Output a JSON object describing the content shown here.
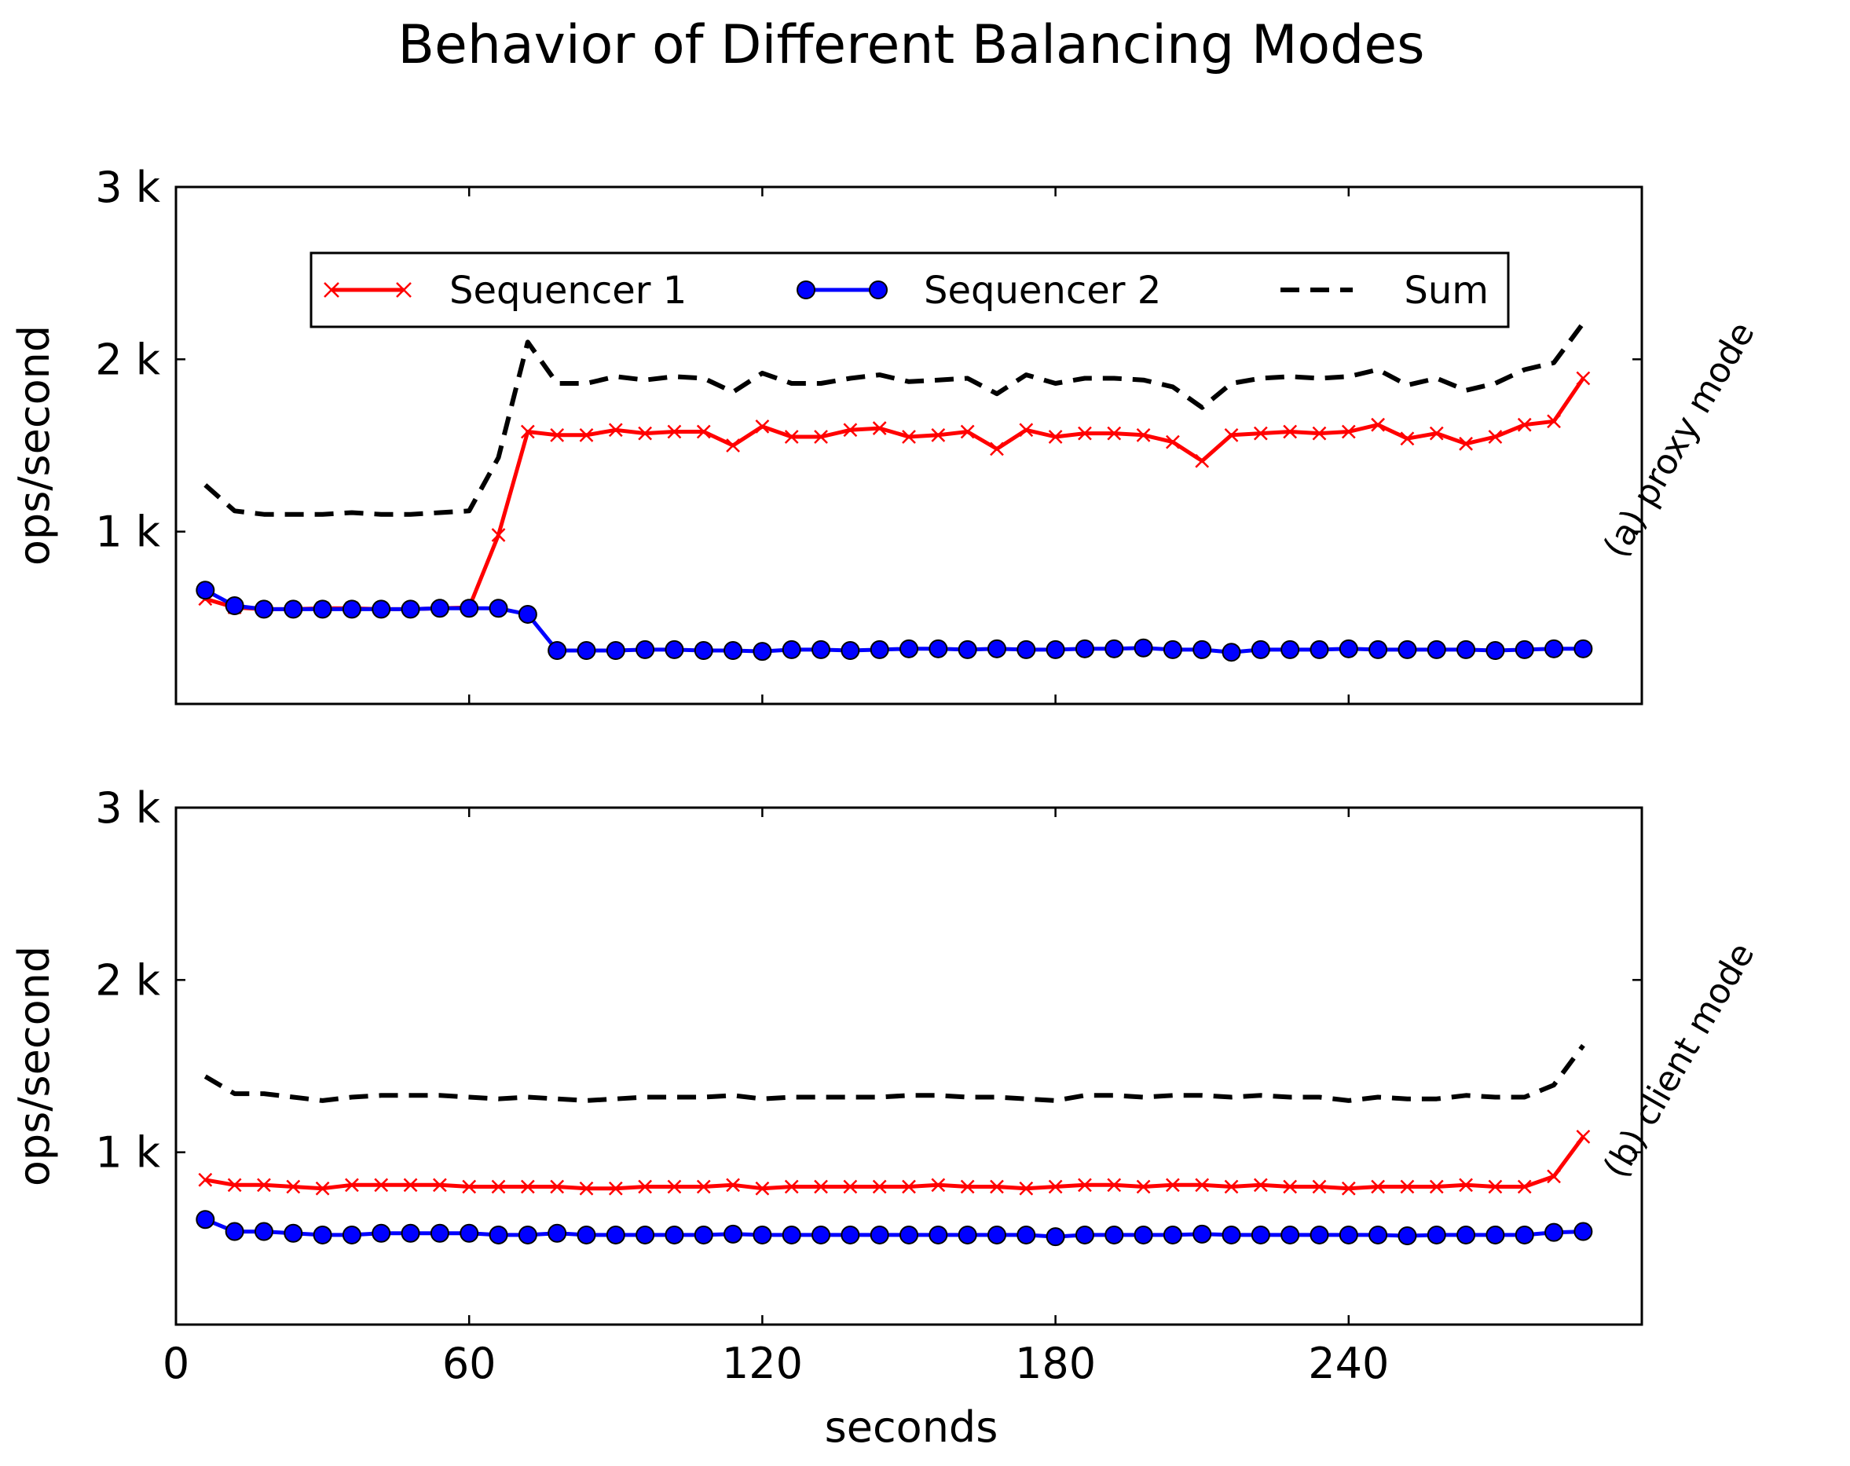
{
  "figure": {
    "title": "Behavior of Different Balancing Modes",
    "xlabel": "seconds"
  },
  "legend": {
    "placement": "upper-center",
    "entries": [
      {
        "label": "Sequencer 1",
        "color": "#ff0000",
        "marker": "x",
        "style": "solid"
      },
      {
        "label": "Sequencer 2",
        "color": "#0000ff",
        "marker": "o",
        "style": "solid"
      },
      {
        "label": "Sum",
        "color": "#000000",
        "marker": "none",
        "style": "dashed"
      }
    ]
  },
  "chart_data": [
    {
      "type": "line",
      "panel_label": "(a) proxy mode",
      "ylabel": "ops/second",
      "xlim": [
        0,
        300
      ],
      "ylim": [
        0,
        3000
      ],
      "xticks": [
        0,
        60,
        120,
        180,
        240
      ],
      "xtick_labels": [
        "0",
        "60",
        "120",
        "180",
        "240"
      ],
      "yticks": [
        1000,
        2000,
        3000
      ],
      "ytick_labels": [
        "1 k",
        "2 k",
        "3 k"
      ],
      "grid": false,
      "x": [
        6,
        12,
        18,
        24,
        30,
        36,
        42,
        48,
        54,
        60,
        66,
        72,
        78,
        84,
        90,
        96,
        102,
        108,
        114,
        120,
        126,
        132,
        138,
        144,
        150,
        156,
        162,
        168,
        174,
        180,
        186,
        192,
        198,
        204,
        210,
        216,
        222,
        228,
        234,
        240,
        246,
        252,
        258,
        264,
        270,
        276,
        282,
        288
      ],
      "series": [
        {
          "name": "Sequencer 1",
          "values": [
            610,
            560,
            550,
            550,
            555,
            555,
            550,
            550,
            555,
            560,
            980,
            1580,
            1560,
            1560,
            1590,
            1570,
            1580,
            1580,
            1500,
            1610,
            1550,
            1550,
            1590,
            1600,
            1550,
            1560,
            1580,
            1480,
            1590,
            1550,
            1570,
            1570,
            1560,
            1520,
            1410,
            1560,
            1570,
            1580,
            1570,
            1580,
            1620,
            1540,
            1570,
            1510,
            1550,
            1620,
            1640,
            1890
          ]
        },
        {
          "name": "Sequencer 2",
          "values": [
            660,
            570,
            550,
            550,
            550,
            550,
            550,
            550,
            555,
            555,
            555,
            520,
            310,
            310,
            310,
            315,
            315,
            310,
            310,
            305,
            315,
            315,
            310,
            315,
            320,
            320,
            315,
            320,
            315,
            315,
            320,
            320,
            325,
            315,
            315,
            300,
            315,
            315,
            315,
            320,
            315,
            315,
            315,
            315,
            310,
            315,
            320,
            320
          ]
        },
        {
          "name": "Sum",
          "values": [
            1270,
            1120,
            1100,
            1100,
            1100,
            1110,
            1100,
            1100,
            1110,
            1120,
            1430,
            2100,
            1860,
            1860,
            1900,
            1880,
            1900,
            1890,
            1810,
            1920,
            1860,
            1860,
            1890,
            1910,
            1870,
            1880,
            1890,
            1800,
            1910,
            1860,
            1890,
            1890,
            1880,
            1840,
            1720,
            1860,
            1890,
            1900,
            1890,
            1900,
            1940,
            1850,
            1890,
            1820,
            1860,
            1940,
            1980,
            2210
          ]
        }
      ]
    },
    {
      "type": "line",
      "panel_label": "(b) client mode",
      "ylabel": "ops/second",
      "xlim": [
        0,
        300
      ],
      "ylim": [
        0,
        3000
      ],
      "xticks": [
        0,
        60,
        120,
        180,
        240
      ],
      "xtick_labels": [
        "0",
        "60",
        "120",
        "180",
        "240"
      ],
      "yticks": [
        1000,
        2000,
        3000
      ],
      "ytick_labels": [
        "1 k",
        "2 k",
        "3 k"
      ],
      "grid": false,
      "x": [
        6,
        12,
        18,
        24,
        30,
        36,
        42,
        48,
        54,
        60,
        66,
        72,
        78,
        84,
        90,
        96,
        102,
        108,
        114,
        120,
        126,
        132,
        138,
        144,
        150,
        156,
        162,
        168,
        174,
        180,
        186,
        192,
        198,
        204,
        210,
        216,
        222,
        228,
        234,
        240,
        246,
        252,
        258,
        264,
        270,
        276,
        282,
        288
      ],
      "series": [
        {
          "name": "Sequencer 1",
          "values": [
            840,
            810,
            810,
            800,
            790,
            810,
            810,
            810,
            810,
            800,
            800,
            800,
            800,
            790,
            790,
            800,
            800,
            800,
            810,
            790,
            800,
            800,
            800,
            800,
            800,
            810,
            800,
            800,
            790,
            800,
            810,
            810,
            800,
            810,
            810,
            800,
            810,
            800,
            800,
            790,
            800,
            800,
            800,
            810,
            800,
            800,
            860,
            1090
          ]
        },
        {
          "name": "Sequencer 2",
          "values": [
            610,
            540,
            540,
            530,
            520,
            520,
            530,
            530,
            530,
            530,
            520,
            520,
            530,
            520,
            520,
            520,
            520,
            520,
            525,
            520,
            520,
            520,
            520,
            520,
            520,
            520,
            520,
            520,
            520,
            510,
            520,
            520,
            520,
            520,
            525,
            520,
            520,
            520,
            520,
            520,
            520,
            515,
            520,
            520,
            520,
            520,
            535,
            540
          ]
        },
        {
          "name": "Sum",
          "values": [
            1440,
            1340,
            1340,
            1320,
            1300,
            1320,
            1330,
            1330,
            1330,
            1320,
            1310,
            1320,
            1310,
            1300,
            1310,
            1320,
            1320,
            1320,
            1330,
            1310,
            1320,
            1320,
            1320,
            1320,
            1330,
            1330,
            1320,
            1320,
            1310,
            1300,
            1330,
            1330,
            1320,
            1330,
            1330,
            1320,
            1330,
            1320,
            1320,
            1300,
            1320,
            1310,
            1310,
            1330,
            1320,
            1320,
            1390,
            1620
          ]
        }
      ]
    }
  ]
}
